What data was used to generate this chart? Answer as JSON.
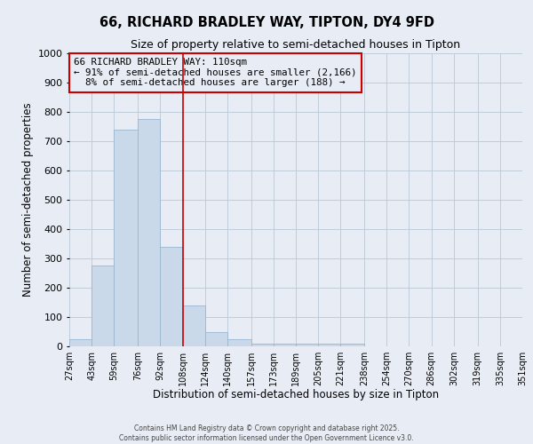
{
  "title_line1": "66, RICHARD BRADLEY WAY, TIPTON, DY4 9FD",
  "title_line2": "Size of property relative to semi-detached houses in Tipton",
  "xlabel": "Distribution of semi-detached houses by size in Tipton",
  "ylabel": "Number of semi-detached properties",
  "bin_labels": [
    "27sqm",
    "43sqm",
    "59sqm",
    "76sqm",
    "92sqm",
    "108sqm",
    "124sqm",
    "140sqm",
    "157sqm",
    "173sqm",
    "189sqm",
    "205sqm",
    "221sqm",
    "238sqm",
    "254sqm",
    "270sqm",
    "286sqm",
    "302sqm",
    "319sqm",
    "335sqm",
    "351sqm"
  ],
  "bin_edges": [
    27,
    43,
    59,
    76,
    92,
    108,
    124,
    140,
    157,
    173,
    189,
    205,
    221,
    238,
    254,
    270,
    286,
    302,
    319,
    335,
    351
  ],
  "bar_heights": [
    25,
    275,
    740,
    775,
    340,
    140,
    50,
    25,
    10,
    10,
    10,
    10,
    10,
    0,
    0,
    0,
    0,
    0,
    0,
    0
  ],
  "bar_color": "#c9d9ea",
  "bar_edge_color": "#9ab5ce",
  "property_line_x": 108,
  "property_sqm": 110,
  "pct_smaller": 91,
  "n_smaller": 2166,
  "pct_larger": 8,
  "n_larger": 188,
  "vline_color": "#cc0000",
  "legend_box_color": "#cc0000",
  "grid_color": "#c0ccd8",
  "bg_color": "#e8edf5",
  "ylim": [
    0,
    1000
  ],
  "yticks": [
    0,
    100,
    200,
    300,
    400,
    500,
    600,
    700,
    800,
    900,
    1000
  ],
  "footer_line1": "Contains HM Land Registry data © Crown copyright and database right 2025.",
  "footer_line2": "Contains public sector information licensed under the Open Government Licence v3.0."
}
